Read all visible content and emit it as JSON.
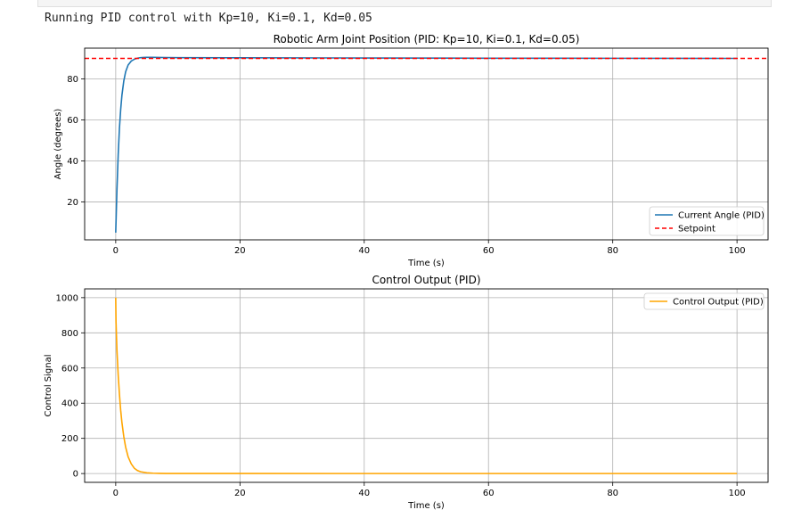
{
  "output": {
    "stdout_line": "Running PID control with Kp=10, Ki=0.1, Kd=0.05"
  },
  "chart_data": [
    {
      "type": "line",
      "title": "Robotic Arm Joint Position (PID: Kp=10, Ki=0.1, Kd=0.05)",
      "xlabel": "Time (s)",
      "ylabel": "Angle (degrees)",
      "xlim": [
        -5,
        105
      ],
      "ylim": [
        1.5,
        95
      ],
      "xticks": [
        0,
        20,
        40,
        60,
        80,
        100
      ],
      "yticks": [
        20,
        40,
        60,
        80
      ],
      "grid": true,
      "legend": "lower right",
      "series": [
        {
          "name": "Current Angle (PID)",
          "color": "#1f77b4",
          "style": "solid",
          "x": [
            0,
            0.2,
            0.4,
            0.6,
            0.8,
            1.0,
            1.3,
            1.6,
            2.0,
            2.5,
            3.0,
            3.5,
            4.0,
            4.5,
            5.0,
            6.0,
            7.0,
            8.0,
            10,
            20,
            40,
            60,
            80,
            100
          ],
          "y": [
            5,
            26,
            43,
            56,
            65,
            72,
            79,
            83.5,
            86.8,
            88.7,
            89.6,
            90.1,
            90.35,
            90.45,
            90.5,
            90.5,
            90.45,
            90.4,
            90.35,
            90.3,
            90.2,
            90.1,
            90.05,
            90.0
          ]
        },
        {
          "name": "Setpoint",
          "color": "#ff0000",
          "style": "dashed",
          "x": [
            -5,
            105
          ],
          "y": [
            90,
            90
          ]
        }
      ]
    },
    {
      "type": "line",
      "title": "Control Output (PID)",
      "xlabel": "Time (s)",
      "ylabel": "Control Signal",
      "xlim": [
        -5,
        105
      ],
      "ylim": [
        -50,
        1050
      ],
      "xticks": [
        0,
        20,
        40,
        60,
        80,
        100
      ],
      "yticks": [
        0,
        200,
        400,
        600,
        800,
        1000
      ],
      "grid": true,
      "legend": "upper right",
      "series": [
        {
          "name": "Control Output (PID)",
          "color": "#ffa500",
          "style": "solid",
          "x": [
            0,
            0.05,
            0.2,
            0.4,
            0.6,
            0.8,
            1.0,
            1.3,
            1.6,
            2.0,
            2.5,
            3.0,
            3.5,
            4.0,
            5.0,
            6.0,
            7.0,
            8.0,
            10,
            20,
            40,
            60,
            80,
            100
          ],
          "y": [
            1000,
            860,
            700,
            560,
            450,
            360,
            290,
            210,
            150,
            95,
            55,
            30,
            17,
            10,
            4,
            2,
            1,
            0.5,
            0.3,
            0.2,
            0.1,
            0.1,
            0.1,
            0.1
          ]
        }
      ]
    }
  ]
}
